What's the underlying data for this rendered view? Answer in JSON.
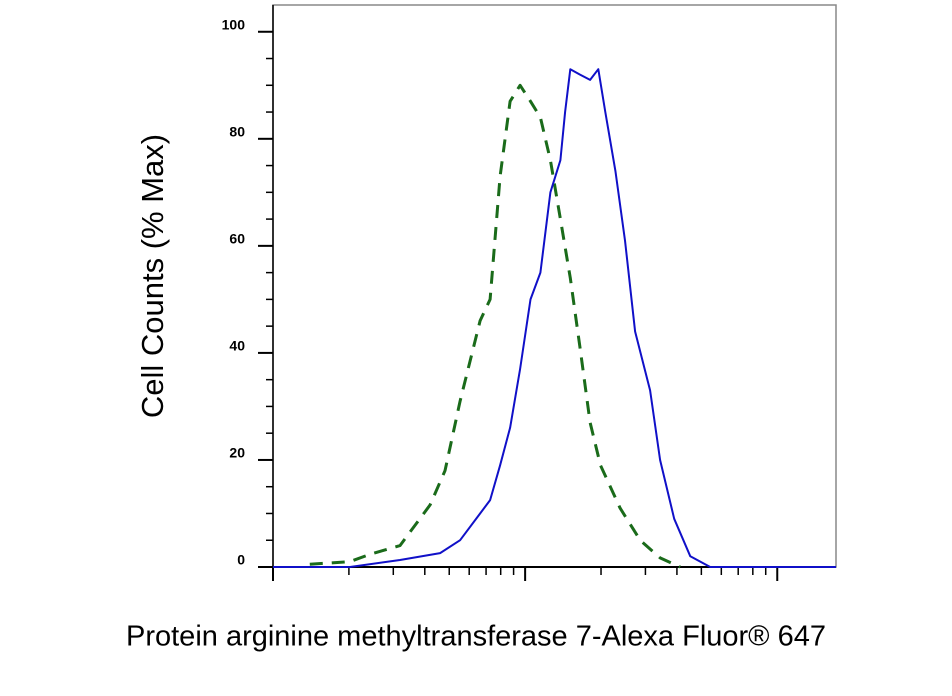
{
  "chart_data": {
    "type": "line",
    "y_label": "Cell Counts (% Max)",
    "x_label": "Protein arginine methyltransferase 7-Alexa Fluor® 647",
    "xscale": "log",
    "xlim": [
      1,
      171
    ],
    "xticks": [
      1,
      10,
      100
    ],
    "ylim": [
      0,
      105
    ],
    "yticks": [
      0,
      20,
      40,
      60,
      80,
      100
    ],
    "series": [
      {
        "color": "#1a6b1a",
        "dashed": true,
        "x": [
          1.4,
          2.02,
          2.43,
          3.19,
          4.2,
          4.81,
          5.52,
          6.63,
          7.26,
          7.96,
          8.72,
          9.55,
          10.5,
          11.5,
          12.6,
          13.8,
          15.1,
          16.5,
          18.1,
          19.9,
          23.8,
          28.6,
          34.3,
          41.2
        ],
        "values": [
          0.5,
          1,
          2.4,
          4,
          11.6,
          18,
          31,
          46,
          50,
          73,
          87,
          90,
          87,
          84,
          76,
          65,
          54,
          41,
          27,
          19,
          11,
          5,
          1.7,
          0
        ]
      },
      {
        "color": "#1010c8",
        "dashed": false,
        "x": [
          1.0,
          2.02,
          3.19,
          4.6,
          5.52,
          6.63,
          7.26,
          7.96,
          8.72,
          9.55,
          10.5,
          11.5,
          12.6,
          13.8,
          14.4,
          15.1,
          16.5,
          18.1,
          19.5,
          20.8,
          22.8,
          24.9,
          27.3,
          31.3,
          34.3,
          39.0,
          45.2,
          54.2,
          171
        ],
        "values": [
          0,
          0,
          1.3,
          2.6,
          5,
          10,
          12.5,
          19,
          26,
          37,
          50,
          55,
          70,
          76,
          85,
          93,
          92,
          91,
          93,
          85,
          74,
          61,
          44,
          33,
          20,
          9,
          2,
          0,
          0
        ]
      }
    ]
  }
}
